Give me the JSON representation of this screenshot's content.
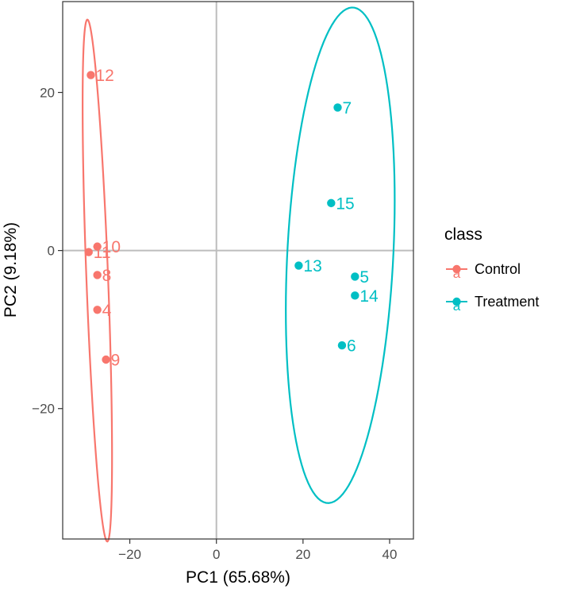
{
  "chart_data": {
    "type": "scatter",
    "xlabel": "PC1 (65.68%)",
    "ylabel": "PC2 (9.18%)",
    "xlim": [
      -35.5,
      45.5
    ],
    "ylim": [
      -36.5,
      31.5
    ],
    "x_ticks": [
      -20,
      0,
      20,
      40
    ],
    "y_ticks": [
      -20,
      0,
      20
    ],
    "x_tick_labels": [
      "−20",
      "0",
      "20",
      "40"
    ],
    "y_tick_labels": [
      "−20",
      "0",
      "20"
    ],
    "zero_lines": true,
    "grid": false,
    "legend_position": "right",
    "legend_title": "class",
    "colors": {
      "Control": "#f8766d",
      "Treatment": "#00bfc4"
    },
    "series": [
      {
        "name": "Control",
        "points": [
          {
            "label": "12",
            "x": -29.0,
            "y": 22.2
          },
          {
            "label": "10",
            "x": -27.5,
            "y": 0.5
          },
          {
            "label": "11",
            "x": -29.5,
            "y": -0.2
          },
          {
            "label": "8",
            "x": -27.5,
            "y": -3.1
          },
          {
            "label": "4",
            "x": -27.5,
            "y": -7.5
          },
          {
            "label": "9",
            "x": -25.5,
            "y": -13.8
          }
        ],
        "ellipse": {
          "center": [
            -27.5,
            -3.8
          ],
          "semi_major": 33.1,
          "semi_minor": 2.5,
          "angle_deg": -86
        }
      },
      {
        "name": "Treatment",
        "points": [
          {
            "label": "7",
            "x": 28.0,
            "y": 18.1
          },
          {
            "label": "15",
            "x": 26.5,
            "y": 6.0
          },
          {
            "label": "13",
            "x": 19.0,
            "y": -1.9
          },
          {
            "label": "5",
            "x": 32.0,
            "y": -3.3
          },
          {
            "label": "14",
            "x": 32.0,
            "y": -5.7
          },
          {
            "label": "6",
            "x": 29.0,
            "y": -12.0
          }
        ],
        "ellipse": {
          "center": [
            28.6,
            -0.6
          ],
          "semi_major": 31.5,
          "semi_minor": 12.2,
          "angle_deg": -96
        }
      }
    ],
    "legend_key_glyph": "a"
  }
}
